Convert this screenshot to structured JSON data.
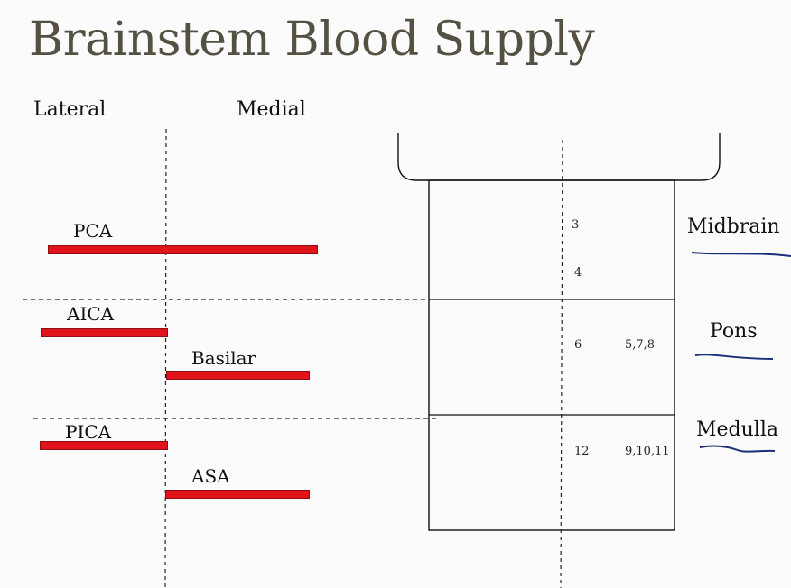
{
  "slide": {
    "title": "Brainstem Blood Supply"
  },
  "columns": {
    "lateral": "Lateral",
    "medial": "Medial"
  },
  "arteries": [
    {
      "label": "PCA"
    },
    {
      "label": "AICA"
    },
    {
      "label": "Basilar"
    },
    {
      "label": "PICA"
    },
    {
      "label": "ASA"
    }
  ],
  "regions": [
    {
      "label": "Midbrain",
      "medial_nuclei": [
        "3",
        "4"
      ],
      "lateral_nuclei": ""
    },
    {
      "label": "Pons",
      "medial_nuclei": [
        "6"
      ],
      "lateral_nuclei": "5,7,8"
    },
    {
      "label": "Medulla",
      "medial_nuclei": [
        "12"
      ],
      "lateral_nuclei": "9,10,11"
    }
  ],
  "colors": {
    "title": "#545042",
    "bar_fill": "#e1131b",
    "bar_border": "#8d0f13",
    "underline": "#1a2f7a"
  }
}
